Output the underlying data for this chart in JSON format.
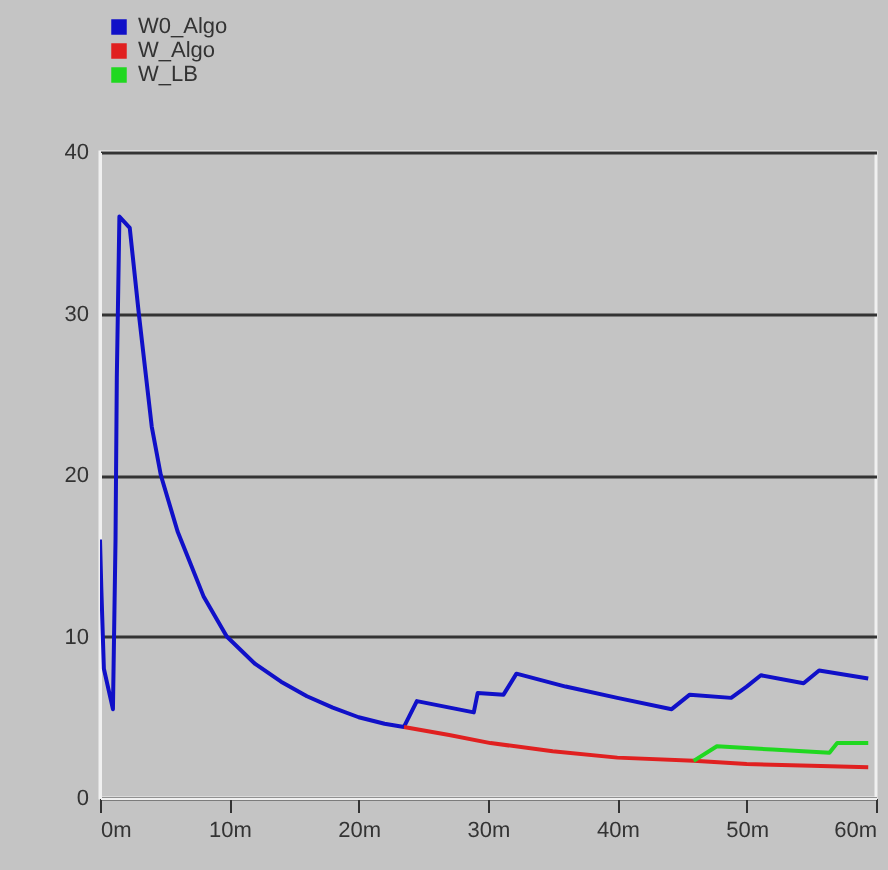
{
  "chart_data": {
    "type": "line",
    "xlim": [
      0,
      60
    ],
    "ylim": [
      0,
      40
    ],
    "xticks": [
      {
        "value": 0,
        "label": "0m"
      },
      {
        "value": 10,
        "label": "10m"
      },
      {
        "value": 20,
        "label": "20m"
      },
      {
        "value": 30,
        "label": "30m"
      },
      {
        "value": 40,
        "label": "40m"
      },
      {
        "value": 50,
        "label": "50m"
      },
      {
        "value": 60,
        "label": "60m"
      }
    ],
    "yticks": [
      0,
      10,
      20,
      30,
      40
    ],
    "grid": "y",
    "legend": "top left",
    "marker": "none",
    "line_style": "solid",
    "series": [
      {
        "name": "W0_Algo",
        "color": "#1010c8",
        "x": [
          0,
          0.1,
          0.3,
          1.0,
          1.2,
          1.3,
          1.5,
          2.3,
          3,
          4,
          4.7,
          6,
          7,
          8,
          9.8,
          12,
          14,
          16,
          18,
          20,
          22,
          23.5,
          24.5,
          28.9,
          29.2,
          31.2,
          32.2,
          36,
          40,
          44.2,
          45.6,
          48.8,
          50,
          51.1,
          54.4,
          55.6,
          59.4
        ],
        "values": [
          16,
          13,
          8,
          5.5,
          16,
          26,
          36,
          35.3,
          30,
          23,
          20,
          16.5,
          14.5,
          12.5,
          10,
          8.3,
          7.2,
          6.3,
          5.6,
          5.0,
          4.6,
          4.4,
          6.0,
          5.3,
          6.5,
          6.4,
          7.7,
          6.9,
          6.2,
          5.5,
          6.4,
          6.2,
          6.9,
          7.6,
          7.1,
          7.9,
          7.4
        ]
      },
      {
        "name": "W_Algo",
        "color": "#e02020",
        "x": [
          23.5,
          27,
          30.2,
          35,
          40,
          45.9,
          50,
          55,
          59.4
        ],
        "values": [
          4.4,
          3.9,
          3.4,
          2.9,
          2.5,
          2.3,
          2.1,
          2.0,
          1.9
        ]
      },
      {
        "name": "W_LB",
        "color": "#20d820",
        "x": [
          45.9,
          47.7,
          52,
          56.4,
          57,
          59.4
        ],
        "values": [
          2.3,
          3.2,
          3.0,
          2.8,
          3.4,
          3.4
        ]
      }
    ]
  }
}
